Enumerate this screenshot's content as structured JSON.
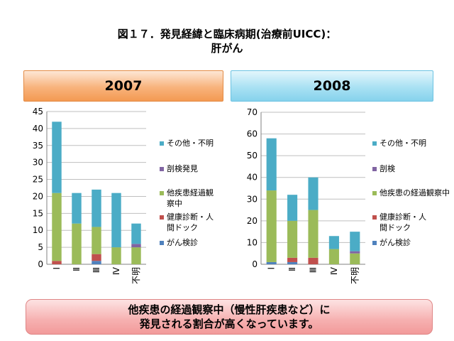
{
  "title": {
    "line1": "図１７．発見経緯と臨床病期(治療前UICC)：",
    "line2": "肝がん"
  },
  "footer": {
    "line1": "他疾患の経過観察中（慢性肝疾患など）に",
    "line2": "発見される割合が高くなっています。"
  },
  "colors": {
    "other": "#4bacc6",
    "autopsy": "#8064a2",
    "followup": "#9bbb59",
    "checkup": "#c0504d",
    "screening": "#4f81bd"
  },
  "chart_data": [
    {
      "type": "bar",
      "stacked": true,
      "title": "2007",
      "categories": [
        "Ⅰ",
        "Ⅱ",
        "Ⅲ",
        "Ⅳ",
        "不明"
      ],
      "ylim": [
        0,
        45
      ],
      "yticks": [
        0,
        5,
        10,
        15,
        20,
        25,
        30,
        35,
        40,
        45
      ],
      "grid": true,
      "legend_position": "right",
      "series": [
        {
          "name": "がん検診",
          "color_key": "screening",
          "values": [
            0,
            0,
            1,
            0,
            0
          ]
        },
        {
          "name": "健康診断・人間ドック",
          "color_key": "checkup",
          "values": [
            1,
            0,
            2,
            0,
            0
          ]
        },
        {
          "name": "他疾患経過観察中",
          "color_key": "followup",
          "values": [
            20,
            12,
            8,
            5,
            5
          ]
        },
        {
          "name": "剖検発見",
          "color_key": "autopsy",
          "values": [
            0,
            0,
            0,
            0,
            1
          ]
        },
        {
          "name": "その他・不明",
          "color_key": "other",
          "values": [
            21,
            9,
            11,
            16,
            6
          ]
        }
      ]
    },
    {
      "type": "bar",
      "stacked": true,
      "title": "2008",
      "categories": [
        "Ⅰ",
        "Ⅱ",
        "Ⅲ",
        "Ⅳ",
        "不明"
      ],
      "ylim": [
        0,
        70
      ],
      "yticks": [
        0,
        10,
        20,
        30,
        40,
        50,
        60,
        70
      ],
      "grid": true,
      "legend_position": "right",
      "series": [
        {
          "name": "がん検診",
          "color_key": "screening",
          "values": [
            1,
            1,
            0,
            0,
            0
          ]
        },
        {
          "name": "健康診断・人間ドック",
          "color_key": "checkup",
          "values": [
            0,
            2,
            3,
            0,
            0
          ]
        },
        {
          "name": "他疾患の経過観察中",
          "color_key": "followup",
          "values": [
            33,
            17,
            22,
            7,
            5
          ]
        },
        {
          "name": "剖検",
          "color_key": "autopsy",
          "values": [
            0,
            0,
            0,
            0,
            1
          ]
        },
        {
          "name": "その他・不明",
          "color_key": "other",
          "values": [
            24,
            12,
            15,
            6,
            9
          ]
        }
      ]
    }
  ]
}
